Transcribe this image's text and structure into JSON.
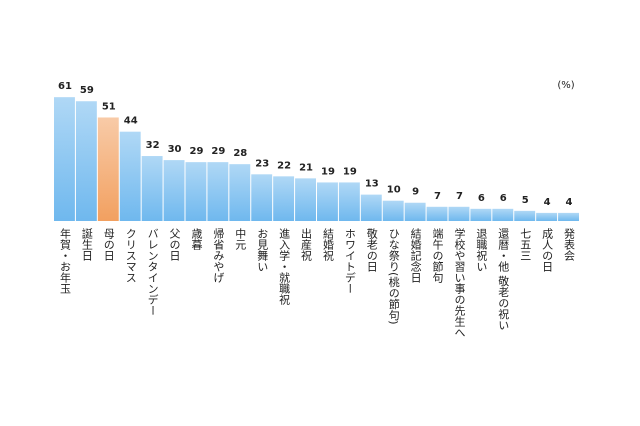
{
  "chart_data": {
    "type": "bar",
    "unit_label": "(%)",
    "categories": [
      "年賀・お年玉",
      "誕生日",
      "母の日",
      "クリスマス",
      "バレンタインデー",
      "父の日",
      "歳暮",
      "帰省みやげ",
      "中元",
      "お見舞い",
      "進入学・就職祝",
      "出産祝",
      "結婚祝",
      "ホワイトデー",
      "敬老の日",
      "ひな祭り(桃の節句)",
      "結婚記念日",
      "端午の節句",
      "学校や習い事の先生へ",
      "退職祝い",
      "還暦・他 敬老の祝い",
      "七五三",
      "成人の日",
      "発表会"
    ],
    "values": [
      61,
      59,
      51,
      44,
      32,
      30,
      29,
      29,
      28,
      23,
      22,
      21,
      19,
      19,
      13,
      10,
      9,
      7,
      7,
      6,
      6,
      5,
      4,
      4
    ],
    "colors": [
      "#6fb8ee",
      "#6fb8ee",
      "#f2a060",
      "#6fb8ee",
      "#6fb8ee",
      "#6fb8ee",
      "#6fb8ee",
      "#6fb8ee",
      "#6fb8ee",
      "#6fb8ee",
      "#6fb8ee",
      "#6fb8ee",
      "#6fb8ee",
      "#6fb8ee",
      "#6fb8ee",
      "#6fb8ee",
      "#6fb8ee",
      "#6fb8ee",
      "#6fb8ee",
      "#6fb8ee",
      "#6fb8ee",
      "#6fb8ee",
      "#6fb8ee",
      "#6fb8ee"
    ]
  }
}
